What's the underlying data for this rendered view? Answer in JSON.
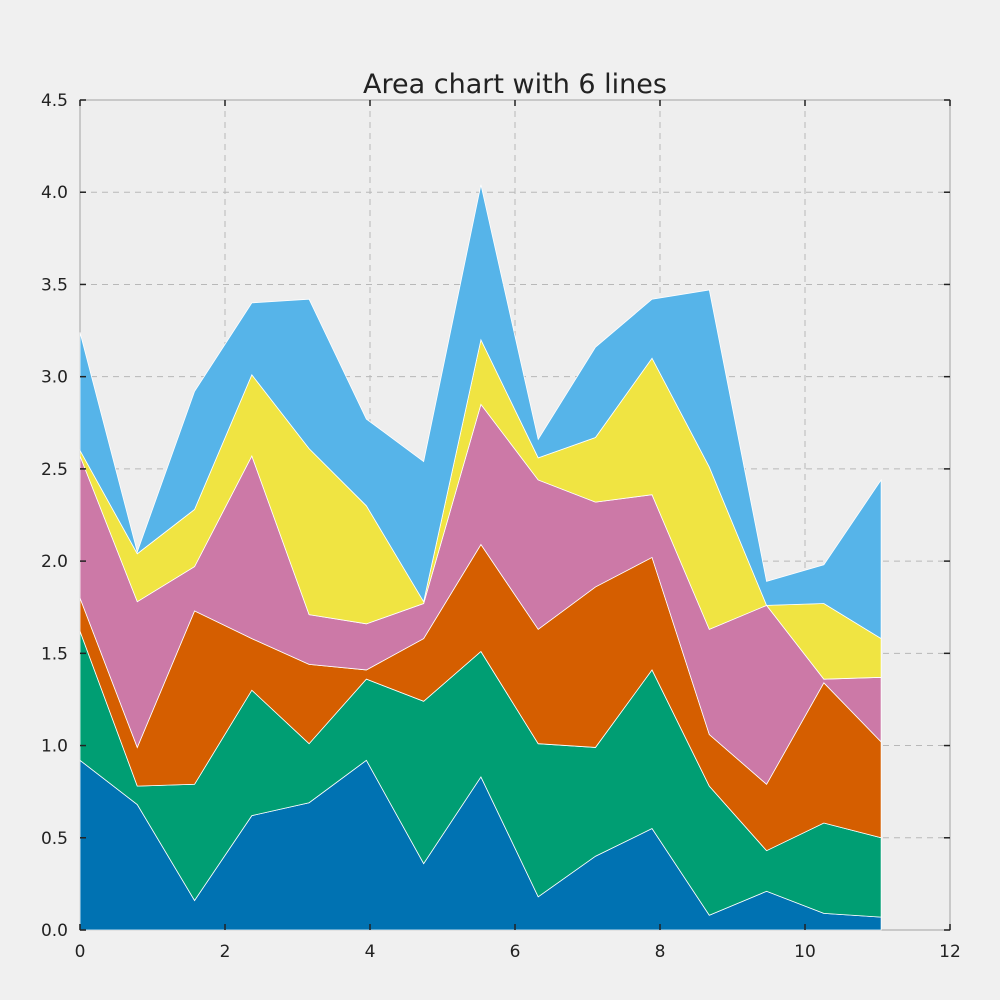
{
  "chart_data": {
    "type": "area",
    "stacked": true,
    "title": "Area chart with 6 lines",
    "xlabel": "",
    "ylabel": "",
    "xlim": [
      0,
      12
    ],
    "ylim": [
      0,
      4.5
    ],
    "xticks": [
      0,
      2,
      4,
      6,
      8,
      10,
      12
    ],
    "yticks": [
      0.0,
      0.5,
      1.0,
      1.5,
      2.0,
      2.5,
      3.0,
      3.5,
      4.0,
      4.5
    ],
    "xtick_labels": [
      "0",
      "2",
      "4",
      "6",
      "8",
      "10",
      "12"
    ],
    "ytick_labels": [
      "0.0",
      "0.5",
      "1.0",
      "1.5",
      "2.0",
      "2.5",
      "3.0",
      "3.5",
      "4.0",
      "4.5"
    ],
    "grid": true,
    "x": [
      0,
      0.79,
      1.58,
      2.37,
      3.16,
      3.95,
      4.74,
      5.53,
      6.32,
      7.11,
      7.89,
      8.68,
      9.47,
      10.26,
      11.05
    ],
    "series": [
      {
        "color": "#0072b2",
        "values": [
          0.92,
          0.68,
          0.16,
          0.62,
          0.69,
          0.92,
          0.36,
          0.83,
          0.18,
          0.4,
          0.55,
          0.08,
          0.21,
          0.09,
          0.07
        ]
      },
      {
        "color": "#009e73",
        "values": [
          0.7,
          0.1,
          0.63,
          0.68,
          0.32,
          0.44,
          0.88,
          0.68,
          0.83,
          0.59,
          0.86,
          0.7,
          0.22,
          0.49,
          0.43
        ]
      },
      {
        "color": "#d55e00",
        "values": [
          0.18,
          0.21,
          0.94,
          0.28,
          0.43,
          0.05,
          0.34,
          0.58,
          0.62,
          0.87,
          0.61,
          0.28,
          0.36,
          0.76,
          0.52
        ]
      },
      {
        "color": "#cc79a7",
        "values": [
          0.77,
          0.79,
          0.24,
          0.99,
          0.27,
          0.25,
          0.19,
          0.76,
          0.81,
          0.46,
          0.34,
          0.57,
          0.97,
          0.02,
          0.35
        ]
      },
      {
        "color": "#f0e442",
        "values": [
          0.03,
          0.26,
          0.31,
          0.44,
          0.9,
          0.64,
          0.01,
          0.35,
          0.12,
          0.35,
          0.74,
          0.88,
          0.0,
          0.41,
          0.21
        ]
      },
      {
        "color": "#56b4e9",
        "values": [
          0.64,
          0.01,
          0.64,
          0.39,
          0.81,
          0.47,
          0.76,
          0.84,
          0.1,
          0.49,
          0.32,
          0.96,
          0.13,
          0.21,
          0.86
        ]
      }
    ]
  }
}
